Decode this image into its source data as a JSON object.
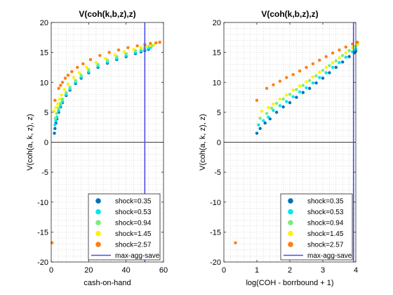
{
  "chart_data": [
    {
      "type": "scatter",
      "title": "V(coh(k,b,z),z)",
      "xlabel": "cash-on-hand",
      "ylabel": "V(coh(a, k, z), z)",
      "xlim": [
        0,
        60
      ],
      "ylim": [
        -20,
        20
      ],
      "xticks": [
        "0",
        "20",
        "40",
        "60"
      ],
      "yticks": [
        "-20",
        "-15",
        "-10",
        "-5",
        "0",
        "5",
        "10",
        "15",
        "20"
      ],
      "grid": "minor-dotted",
      "legend_placement": "bottom-right",
      "zero_line_y": 0,
      "vertical_line": {
        "name": "max-agg-save",
        "x": 50
      },
      "series": [
        {
          "name": "shock=0.35",
          "color": "#0072BD",
          "x": [
            1.7,
            2.0,
            2.5,
            3.0,
            4.0,
            5.0,
            6.0,
            8.0,
            10.0,
            13.0,
            16.0,
            20.0,
            25.0,
            30.0,
            35.0,
            40.0,
            45.0,
            48.0,
            50.0,
            52.0
          ],
          "values": [
            1.5,
            2.3,
            3.2,
            3.9,
            5.0,
            5.9,
            6.6,
            7.8,
            8.7,
            9.8,
            10.7,
            11.6,
            12.5,
            13.2,
            13.8,
            14.3,
            14.8,
            15.1,
            15.3,
            15.5
          ]
        },
        {
          "name": "shock=0.53",
          "color": "#00E5EE",
          "x": [
            2.0,
            2.5,
            3.0,
            4.0,
            5.0,
            6.0,
            8.0,
            10.0,
            13.0,
            16.0,
            20.0,
            25.0,
            30.0,
            35.0,
            40.0,
            45.0,
            48.0,
            50.0,
            52.0,
            53.0
          ],
          "values": [
            2.9,
            3.6,
            4.2,
            5.3,
            6.1,
            6.8,
            8.0,
            8.9,
            10.0,
            10.9,
            11.8,
            12.7,
            13.4,
            14.0,
            14.5,
            15.0,
            15.3,
            15.5,
            15.7,
            15.8
          ]
        },
        {
          "name": "shock=0.94",
          "color": "#7CEB7C",
          "x": [
            2.2,
            3.0,
            4.0,
            5.0,
            6.0,
            8.0,
            10.0,
            13.0,
            16.0,
            20.0,
            25.0,
            30.0,
            35.0,
            40.0,
            45.0,
            48.0,
            50.0,
            52.0,
            54.0
          ],
          "values": [
            4.0,
            4.8,
            5.7,
            6.5,
            7.2,
            8.3,
            9.2,
            10.3,
            11.2,
            12.1,
            13.0,
            13.7,
            14.3,
            14.8,
            15.3,
            15.6,
            15.8,
            16.0,
            16.1
          ]
        },
        {
          "name": "shock=1.45",
          "color": "#FFF200",
          "x": [
            1.5,
            2.5,
            3.5,
            4.5,
            5.5,
            7.0,
            9.0,
            12.0,
            15.0,
            19.0,
            24.0,
            29.0,
            34.0,
            39.0,
            44.0,
            48.0,
            51.0,
            53.0,
            55.0
          ],
          "values": [
            5.2,
            5.8,
            6.4,
            7.2,
            7.9,
            8.8,
            9.7,
            10.8,
            11.6,
            12.5,
            13.3,
            14.0,
            14.6,
            15.1,
            15.5,
            15.8,
            16.0,
            16.2,
            16.3
          ]
        },
        {
          "name": "shock=2.57",
          "color": "#FF7F0E",
          "x": [
            0.4,
            2.0,
            4.0,
            5.0,
            6.0,
            7.5,
            9.0,
            11.0,
            14.0,
            17.0,
            21.0,
            26.0,
            31.0,
            36.0,
            41.0,
            46.0,
            50.0,
            53.0,
            56.0,
            58.0
          ],
          "values": [
            -16.8,
            7.0,
            9.0,
            9.5,
            10.0,
            10.7,
            11.2,
            11.8,
            12.5,
            13.1,
            13.8,
            14.5,
            15.0,
            15.4,
            15.8,
            16.1,
            16.3,
            16.5,
            16.6,
            16.7
          ]
        }
      ]
    },
    {
      "type": "scatter",
      "title": "V(coh(k,b,z),z)",
      "xlabel": "log(COH - borrbound + 1)",
      "ylabel": "V(coh(a, k, z), z)",
      "xlim": [
        0,
        4
      ],
      "ylim": [
        -20,
        20
      ],
      "xticks": [
        "0",
        "1",
        "2",
        "3",
        "4"
      ],
      "yticks": [
        "-20",
        "-15",
        "-10",
        "-5",
        "0",
        "5",
        "10",
        "15",
        "20"
      ],
      "grid": "minor-dotted",
      "legend_placement": "bottom-right",
      "zero_line_y": 0,
      "vertical_line": {
        "name": "max-agg-save",
        "x": 3.93
      },
      "series": [
        {
          "name": "shock=0.35",
          "color": "#0072BD",
          "x": [
            1.0,
            1.1,
            1.25,
            1.4,
            1.6,
            1.8,
            2.0,
            2.2,
            2.4,
            2.6,
            2.8,
            3.0,
            3.2,
            3.4,
            3.6,
            3.8,
            3.95,
            4.0
          ],
          "values": [
            1.5,
            2.3,
            3.2,
            3.9,
            5.0,
            5.9,
            6.6,
            7.5,
            8.3,
            9.0,
            9.9,
            10.7,
            11.6,
            12.5,
            13.4,
            14.3,
            14.9,
            15.2
          ]
        },
        {
          "name": "shock=0.53",
          "color": "#00E5EE",
          "x": [
            1.05,
            1.2,
            1.35,
            1.5,
            1.7,
            1.9,
            2.1,
            2.3,
            2.5,
            2.7,
            2.9,
            3.1,
            3.3,
            3.5,
            3.7,
            3.9,
            4.0
          ],
          "values": [
            2.9,
            3.6,
            4.2,
            5.3,
            6.1,
            6.8,
            7.6,
            8.4,
            9.1,
            9.9,
            10.8,
            11.6,
            12.5,
            13.3,
            14.2,
            15.1,
            15.5
          ]
        },
        {
          "name": "shock=0.94",
          "color": "#7CEB7C",
          "x": [
            1.1,
            1.3,
            1.45,
            1.6,
            1.8,
            2.0,
            2.2,
            2.4,
            2.6,
            2.8,
            3.0,
            3.2,
            3.4,
            3.6,
            3.8,
            4.0
          ],
          "values": [
            4.0,
            4.8,
            5.7,
            6.5,
            7.2,
            8.0,
            8.8,
            9.5,
            10.3,
            11.1,
            12.0,
            12.8,
            13.6,
            14.5,
            15.3,
            16.0
          ]
        },
        {
          "name": "shock=1.45",
          "color": "#FFF200",
          "x": [
            1.15,
            1.35,
            1.5,
            1.7,
            1.9,
            2.1,
            2.3,
            2.5,
            2.7,
            2.9,
            3.1,
            3.3,
            3.5,
            3.7,
            3.9,
            4.05
          ],
          "values": [
            5.2,
            5.8,
            6.4,
            7.2,
            7.9,
            8.7,
            9.4,
            10.1,
            10.9,
            11.7,
            12.5,
            13.3,
            14.1,
            14.9,
            15.8,
            16.3
          ]
        },
        {
          "name": "shock=2.57",
          "color": "#FF7F0E",
          "x": [
            0.35,
            1.0,
            1.3,
            1.5,
            1.7,
            1.9,
            2.1,
            2.3,
            2.5,
            2.7,
            2.9,
            3.1,
            3.3,
            3.5,
            3.7,
            3.9,
            4.05
          ],
          "values": [
            -16.8,
            7.0,
            9.0,
            9.6,
            10.2,
            10.8,
            11.3,
            11.9,
            12.5,
            13.1,
            13.7,
            14.3,
            14.9,
            15.4,
            15.9,
            16.4,
            16.7
          ]
        }
      ]
    }
  ]
}
